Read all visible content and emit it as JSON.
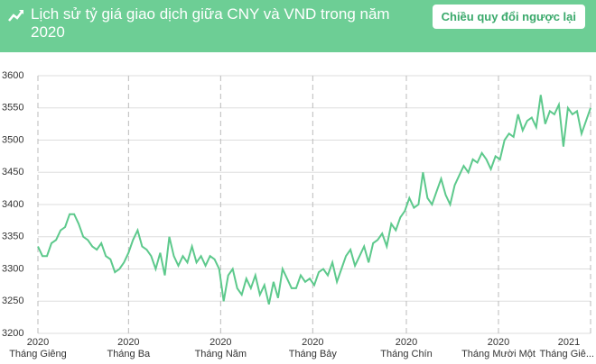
{
  "header": {
    "title": "Lịch sử tỷ giá giao dịch giữa CNY và VND trong năm 2020",
    "button": "Chiều quy đổi ngược lại"
  },
  "chart_data": {
    "type": "line",
    "color": "#5dc98c",
    "grid": true,
    "xlim": [
      0,
      366
    ],
    "ylim": [
      3200,
      3600
    ],
    "yticks": [
      3200,
      3250,
      3300,
      3350,
      3400,
      3450,
      3500,
      3550,
      3600
    ],
    "xticks": [
      {
        "value": 0,
        "label": "Tháng Giêng",
        "year": "2020"
      },
      {
        "value": 60,
        "label": "Tháng Ba",
        "year": "2020"
      },
      {
        "value": 121,
        "label": "Tháng Năm",
        "year": "2020"
      },
      {
        "value": 182,
        "label": "Tháng Bảy",
        "year": "2020"
      },
      {
        "value": 244,
        "label": "Tháng Chín",
        "year": "2020"
      },
      {
        "value": 305,
        "label": "Tháng Mười Một",
        "year": "2020"
      },
      {
        "value": 366,
        "label": "Tháng Giê...",
        "year": "2021"
      }
    ],
    "x": [
      0,
      3,
      6,
      9,
      12,
      15,
      18,
      21,
      24,
      27,
      30,
      33,
      36,
      39,
      42,
      45,
      48,
      51,
      54,
      57,
      60,
      63,
      66,
      69,
      72,
      75,
      78,
      81,
      84,
      87,
      90,
      93,
      96,
      99,
      102,
      105,
      108,
      111,
      114,
      117,
      120,
      123,
      126,
      129,
      132,
      135,
      138,
      141,
      144,
      147,
      150,
      153,
      156,
      159,
      162,
      165,
      168,
      171,
      174,
      177,
      180,
      183,
      186,
      189,
      192,
      195,
      198,
      201,
      204,
      207,
      210,
      213,
      216,
      219,
      222,
      225,
      228,
      231,
      234,
      237,
      240,
      243,
      246,
      249,
      252,
      255,
      258,
      261,
      264,
      267,
      270,
      273,
      276,
      279,
      282,
      285,
      288,
      291,
      294,
      297,
      300,
      303,
      306,
      309,
      312,
      315,
      318,
      321,
      324,
      327,
      330,
      333,
      336,
      339,
      342,
      345,
      348,
      351,
      354,
      357,
      360,
      363,
      366
    ],
    "values": [
      3335,
      3320,
      3320,
      3340,
      3345,
      3360,
      3365,
      3385,
      3385,
      3370,
      3350,
      3345,
      3335,
      3330,
      3340,
      3320,
      3315,
      3295,
      3300,
      3310,
      3325,
      3345,
      3360,
      3335,
      3330,
      3320,
      3300,
      3325,
      3290,
      3350,
      3320,
      3305,
      3320,
      3310,
      3335,
      3310,
      3320,
      3305,
      3320,
      3315,
      3300,
      3250,
      3290,
      3300,
      3270,
      3260,
      3285,
      3270,
      3290,
      3260,
      3275,
      3245,
      3280,
      3255,
      3300,
      3285,
      3270,
      3270,
      3290,
      3280,
      3285,
      3275,
      3295,
      3300,
      3290,
      3310,
      3280,
      3300,
      3320,
      3330,
      3305,
      3320,
      3335,
      3310,
      3340,
      3345,
      3355,
      3335,
      3370,
      3360,
      3380,
      3390,
      3410,
      3395,
      3400,
      3450,
      3410,
      3400,
      3420,
      3440,
      3415,
      3400,
      3430,
      3445,
      3460,
      3450,
      3470,
      3465,
      3480,
      3470,
      3455,
      3475,
      3470,
      3500,
      3510,
      3505,
      3540,
      3515,
      3530,
      3535,
      3520,
      3570,
      3525,
      3545,
      3540,
      3555,
      3490,
      3550,
      3540,
      3545,
      3510,
      3530,
      3550
    ]
  }
}
